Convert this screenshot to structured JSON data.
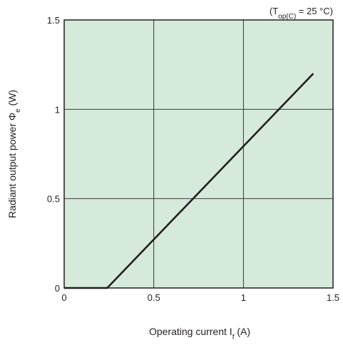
{
  "chart_data": {
    "type": "line",
    "annotation": {
      "prefix": "(T",
      "sub": "op(C)",
      "suffix": " = 25 °C)"
    },
    "xlabel": {
      "prefix": "Operating current I",
      "sub": "f",
      "suffix": " (A)"
    },
    "ylabel": {
      "text": "Radiant output power Φ",
      "sub": "e",
      "suffix": " (W)"
    },
    "xlim": [
      0,
      1.5
    ],
    "ylim": [
      0,
      1.5
    ],
    "x_ticks": [
      {
        "value": 0,
        "label": "0"
      },
      {
        "value": 0.5,
        "label": "0.5"
      },
      {
        "value": 1,
        "label": "1"
      },
      {
        "value": 1.5,
        "label": "1.5"
      }
    ],
    "y_ticks": [
      {
        "value": 0,
        "label": "0"
      },
      {
        "value": 0.5,
        "label": "0.5"
      },
      {
        "value": 1,
        "label": "1"
      },
      {
        "value": 1.5,
        "label": "1.5"
      }
    ],
    "grid": true,
    "colors": {
      "plot_background": "#d6eadc",
      "grid": "#231f20",
      "line": "#231f20"
    },
    "series": [
      {
        "x": [
          0,
          0.24,
          1.39
        ],
        "y": [
          0,
          0,
          1.2
        ]
      }
    ]
  }
}
